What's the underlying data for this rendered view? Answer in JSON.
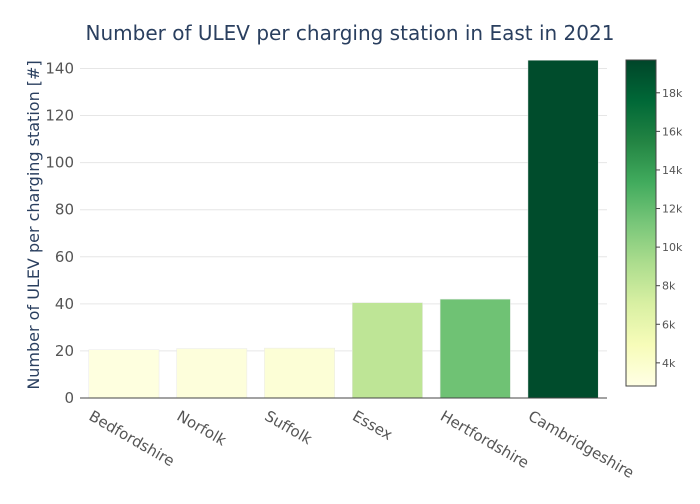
{
  "chart_data": {
    "type": "bar",
    "title": "Number of ULEV per charging station in East in 2021",
    "xlabel": "",
    "ylabel": "Number of ULEV per charging station [#]",
    "categories": [
      "Bedfordshire",
      "Norfolk",
      "Suffolk",
      "Essex",
      "Hertfordshire",
      "Cambridgeshire"
    ],
    "values": [
      20.5,
      21,
      21.2,
      40.5,
      42,
      143.5
    ],
    "color_values": [
      3100,
      3300,
      3500,
      8300,
      11600,
      19300
    ],
    "ylim": [
      0,
      147
    ],
    "yticks": [
      "0",
      "20",
      "40",
      "60",
      "80",
      "100",
      "120",
      "140"
    ],
    "grid": true,
    "colorbar": {
      "colorscale": "YlGn",
      "range": [
        2800,
        19700
      ],
      "ticks": [
        "4k",
        "6k",
        "8k",
        "10k",
        "12k",
        "14k",
        "16k",
        "18k"
      ],
      "tick_values": [
        4000,
        6000,
        8000,
        10000,
        12000,
        14000,
        16000,
        18000
      ]
    }
  }
}
